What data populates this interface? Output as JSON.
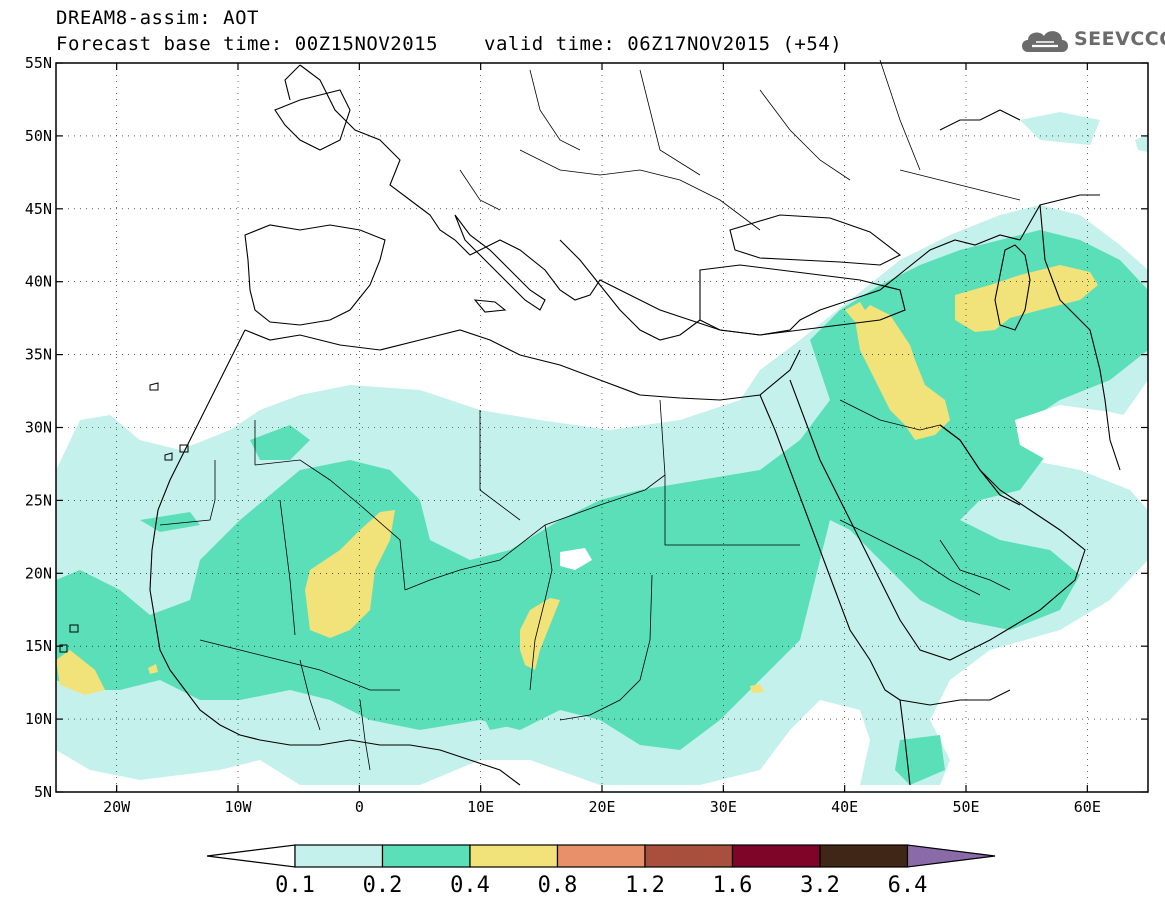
{
  "title": {
    "line1": "DREAM8-assim: AOT",
    "base_time": "Forecast base time: 00Z15NOV2015",
    "valid_time": "valid time: 06Z17NOV2015 (+54)"
  },
  "logo": {
    "text": "SEEVCCC",
    "icon": "cloud-icon"
  },
  "map": {
    "lon_range": [
      -25,
      65
    ],
    "lat_range": [
      5,
      55
    ],
    "lat_ticks": [
      {
        "value": 55,
        "label": "55N"
      },
      {
        "value": 50,
        "label": "50N"
      },
      {
        "value": 45,
        "label": "45N"
      },
      {
        "value": 40,
        "label": "40N"
      },
      {
        "value": 35,
        "label": "35N"
      },
      {
        "value": 30,
        "label": "30N"
      },
      {
        "value": 25,
        "label": "25N"
      },
      {
        "value": 20,
        "label": "20N"
      },
      {
        "value": 15,
        "label": "15N"
      },
      {
        "value": 10,
        "label": "10N"
      },
      {
        "value": 5,
        "label": "5N"
      }
    ],
    "lon_ticks": [
      {
        "value": -20,
        "label": "20W"
      },
      {
        "value": -10,
        "label": "10W"
      },
      {
        "value": 0,
        "label": "0"
      },
      {
        "value": 10,
        "label": "10E"
      },
      {
        "value": 20,
        "label": "20E"
      },
      {
        "value": 30,
        "label": "30E"
      },
      {
        "value": 40,
        "label": "40E"
      },
      {
        "value": 50,
        "label": "50E"
      },
      {
        "value": 60,
        "label": "60E"
      }
    ]
  },
  "colorbar": {
    "colors": [
      "#c5f1ec",
      "#5bdfb8",
      "#f2e27a",
      "#e8906a",
      "#a84f3e",
      "#7e0528",
      "#3f2616"
    ],
    "below_color": "#ffffff",
    "above_color": "#8a6aa8",
    "labels": [
      "0.1",
      "0.2",
      "0.4",
      "0.8",
      "1.2",
      "1.6",
      "3.2",
      "6.4"
    ]
  }
}
